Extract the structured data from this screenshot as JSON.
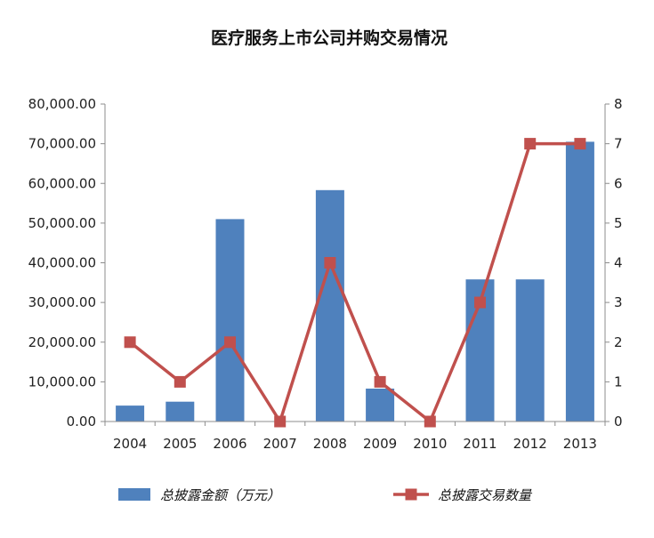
{
  "chart_data": {
    "type": "bar+line",
    "title": "医疗服务上市公司并购交易情况",
    "categories": [
      "2004",
      "2005",
      "2006",
      "2007",
      "2008",
      "2009",
      "2010",
      "2011",
      "2012",
      "2013"
    ],
    "series": [
      {
        "name": "总披露金额（万元）",
        "type": "bar",
        "axis": "left",
        "color": "#4f81bd",
        "values": [
          4000,
          5000,
          51000,
          0,
          58300,
          8300,
          0,
          35800,
          35800,
          70500
        ]
      },
      {
        "name": "总披露交易数量",
        "type": "line",
        "axis": "right",
        "color": "#c0504d",
        "values": [
          2,
          1,
          2,
          0,
          4,
          1,
          0,
          3,
          7,
          7
        ]
      }
    ],
    "y_left": {
      "range": [
        0,
        80000
      ],
      "ticks": [
        "0.00",
        "10,000.00",
        "20,000.00",
        "30,000.00",
        "40,000.00",
        "50,000.00",
        "60,000.00",
        "70,000.00",
        "80,000.00"
      ]
    },
    "y_right": {
      "range": [
        0,
        8
      ],
      "ticks": [
        "0",
        "1",
        "2",
        "3",
        "4",
        "5",
        "6",
        "7",
        "8"
      ]
    },
    "grid": false,
    "legend_position": "bottom"
  }
}
